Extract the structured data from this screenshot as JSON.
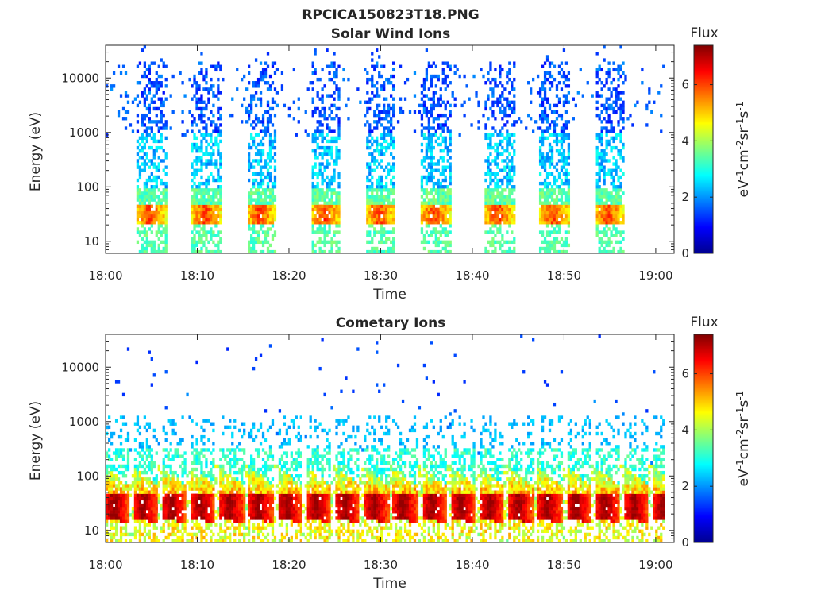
{
  "figure": {
    "title": "RPCICA150823T18.PNG",
    "colormap": "jet"
  },
  "chart_data": [
    {
      "type": "heatmap",
      "title": "Solar Wind Ions",
      "xlabel": "Time",
      "ylabel": "Energy (eV)",
      "xlim": [
        "18:00",
        "19:02"
      ],
      "ylim": [
        6,
        40000
      ],
      "y_scale": "log",
      "x_ticks": [
        "18:00",
        "18:10",
        "18:20",
        "18:30",
        "18:40",
        "18:50",
        "19:00"
      ],
      "y_ticks": [
        10,
        100,
        1000,
        10000
      ],
      "y_tick_labels": [
        "10",
        "100",
        "1000",
        "10000"
      ],
      "colorbar": {
        "label": "Flux",
        "unit_label": "eV-1cm-2sr-1s-1",
        "range": [
          0,
          7.4
        ],
        "ticks": [
          0,
          2,
          4,
          6
        ],
        "tick_labels": [
          "0",
          "2",
          "4",
          "6"
        ]
      },
      "pattern": {
        "burst_centers": [
          "18:05",
          "18:11",
          "18:17",
          "18:24",
          "18:30",
          "18:36",
          "18:43",
          "18:49",
          "18:55"
        ],
        "burst_duration_min": 3.2,
        "core_energy_eV": [
          20,
          45
        ],
        "core_flux": 5.5,
        "high_energy_flux": 1.5
      }
    },
    {
      "type": "heatmap",
      "title": "Cometary Ions",
      "xlabel": "Time",
      "ylabel": "Energy (eV)",
      "xlim": [
        "18:00",
        "19:02"
      ],
      "ylim": [
        6,
        40000
      ],
      "y_scale": "log",
      "x_ticks": [
        "18:00",
        "18:10",
        "18:20",
        "18:30",
        "18:40",
        "18:50",
        "19:00"
      ],
      "y_ticks": [
        10,
        100,
        1000,
        10000
      ],
      "y_tick_labels": [
        "10",
        "100",
        "1000",
        "10000"
      ],
      "colorbar": {
        "label": "Flux",
        "unit_label": "eV-1cm-2sr-1s-1",
        "range": [
          0,
          7.4
        ],
        "ticks": [
          0,
          2,
          4,
          6
        ],
        "tick_labels": [
          "0",
          "2",
          "4",
          "6"
        ]
      },
      "pattern": {
        "period_min": 3.15,
        "core_energy_eV": [
          15,
          45
        ],
        "core_flux": 7.0,
        "high_energy_flux": 2.0
      }
    }
  ]
}
